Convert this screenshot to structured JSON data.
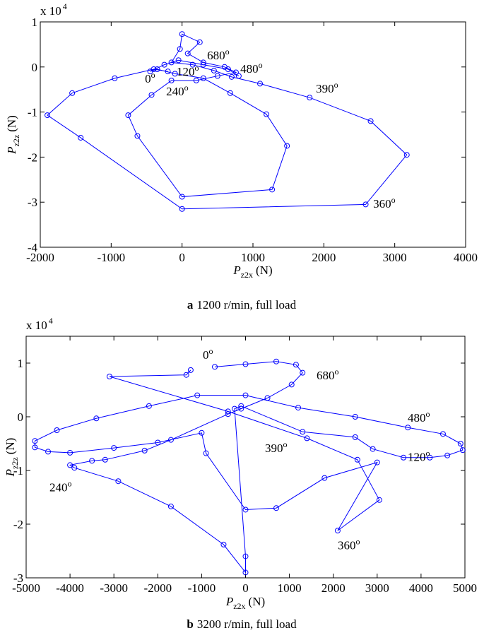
{
  "chart_data": [
    {
      "type": "line",
      "caption_letter": "a",
      "caption": "1200 r/min, full load",
      "xlabel": {
        "text": "P",
        "sub": "z2x",
        "unit": "(N)"
      },
      "ylabel": {
        "text": "P",
        "sub": "z2z",
        "unit": "(N)"
      },
      "y_multiplier": "x 10",
      "y_multiplier_exp": "4",
      "color": "#0000ff",
      "marker": "circle",
      "xlim": [
        -2000,
        4000
      ],
      "xticks": [
        -2000,
        -1000,
        0,
        1000,
        2000,
        3000,
        4000
      ],
      "ylim": [
        -4,
        1
      ],
      "yticks": [
        -4,
        -3,
        -2,
        -1,
        0,
        1
      ],
      "annotations": [
        {
          "text": "680",
          "sup": "o"
        },
        {
          "text": "480",
          "sup": "o"
        },
        {
          "text": "0",
          "sup": "o"
        },
        {
          "text": "120",
          "sup": "o"
        },
        {
          "text": "240",
          "sup": "o"
        },
        {
          "text": "390",
          "sup": "o"
        },
        {
          "text": "360",
          "sup": "o"
        }
      ],
      "x": [
        -200,
        -400,
        -950,
        -1550,
        -1900,
        -1430,
        0,
        2590,
        3170,
        2660,
        1800,
        1100,
        700,
        450,
        150,
        -150,
        -30,
        0,
        250,
        80,
        300,
        600,
        760,
        500,
        200,
        -150,
        -430,
        -760,
        -630,
        0,
        1270,
        1480,
        1190,
        680,
        300,
        -100,
        -350,
        -450,
        -250,
        -50,
        300,
        650,
        800
      ],
      "values": [
        -0.1,
        -0.05,
        -0.25,
        -0.58,
        -1.07,
        -1.57,
        -3.15,
        -3.05,
        -1.95,
        -1.2,
        -0.68,
        -0.37,
        -0.22,
        -0.08,
        0.05,
        0.1,
        0.4,
        0.73,
        0.55,
        0.3,
        0.1,
        0.0,
        -0.12,
        -0.2,
        -0.3,
        -0.3,
        -0.62,
        -1.07,
        -1.53,
        -2.88,
        -2.72,
        -1.75,
        -1.05,
        -0.58,
        -0.25,
        -0.15,
        -0.05,
        -0.1,
        0.05,
        0.15,
        0.05,
        -0.05,
        -0.2
      ]
    },
    {
      "type": "line",
      "caption_letter": "b",
      "caption": "3200 r/min, full load",
      "xlabel": {
        "text": "P",
        "sub": "z2x",
        "unit": "(N)"
      },
      "ylabel": {
        "text": "P",
        "sub": "z2z",
        "unit": "(N)"
      },
      "y_multiplier": "x 10",
      "y_multiplier_exp": "4",
      "color": "#0000ff",
      "marker": "circle",
      "xlim": [
        -5000,
        5000
      ],
      "xticks": [
        -5000,
        -4000,
        -3000,
        -2000,
        -1000,
        0,
        1000,
        2000,
        3000,
        4000,
        5000
      ],
      "ylim": [
        -3,
        1.5
      ],
      "yticks": [
        -3,
        -2,
        -1,
        0,
        1
      ],
      "annotations": [
        {
          "text": "0",
          "sup": "o"
        },
        {
          "text": "680",
          "sup": "o"
        },
        {
          "text": "480",
          "sup": "o"
        },
        {
          "text": "390",
          "sup": "o"
        },
        {
          "text": "120",
          "sup": "o"
        },
        {
          "text": "240",
          "sup": "o"
        },
        {
          "text": "360",
          "sup": "o"
        }
      ],
      "x": [
        -700,
        0,
        700,
        1150,
        1300,
        1050,
        500,
        -100,
        -400,
        -1700,
        -2300,
        -3200,
        -3500,
        -4000,
        -3900,
        -2900,
        -1700,
        -500,
        0,
        0,
        -250,
        -100,
        1300,
        2500,
        2900,
        3600,
        4200,
        4600,
        4950,
        4900,
        4500,
        3700,
        2500,
        1200,
        0,
        -1100,
        -2200,
        -3400,
        -4300,
        -4800,
        -4800,
        -4500,
        -4000,
        -3000,
        -2000,
        -1000,
        -900,
        0,
        700,
        1800,
        3000,
        2100,
        3050,
        2550,
        1400,
        -400,
        -3100,
        -1350,
        -1250
      ],
      "values": [
        0.93,
        0.98,
        1.03,
        0.97,
        0.82,
        0.6,
        0.35,
        0.15,
        0.05,
        -0.43,
        -0.63,
        -0.8,
        -0.82,
        -0.9,
        -0.95,
        -1.2,
        -1.67,
        -2.38,
        -2.9,
        -2.6,
        0.15,
        0.2,
        -0.28,
        -0.38,
        -0.6,
        -0.76,
        -0.76,
        -0.72,
        -0.62,
        -0.5,
        -0.32,
        -0.2,
        0.0,
        0.17,
        0.4,
        0.4,
        0.2,
        -0.03,
        -0.25,
        -0.45,
        -0.57,
        -0.65,
        -0.67,
        -0.58,
        -0.48,
        -0.3,
        -0.68,
        -1.73,
        -1.7,
        -1.14,
        -0.85,
        -2.12,
        -1.55,
        -0.8,
        -0.4,
        0.1,
        0.75,
        0.78,
        0.87
      ]
    }
  ]
}
